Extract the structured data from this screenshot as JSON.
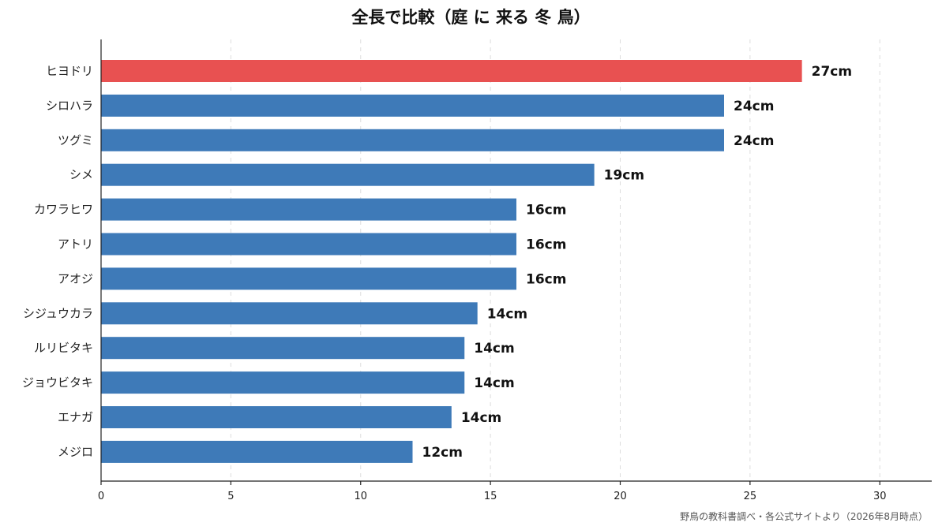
{
  "chart_data": {
    "type": "bar",
    "orientation": "horizontal",
    "title": "全長で比較（庭 に 来る 冬 鳥）",
    "categories": [
      "ヒヨドリ",
      "シロハラ",
      "ツグミ",
      "シメ",
      "カワラヒワ",
      "アトリ",
      "アオジ",
      "シジュウカラ",
      "ルリビタキ",
      "ジョウビタキ",
      "エナガ",
      "メジロ"
    ],
    "values": [
      27,
      24,
      24,
      19,
      16,
      16,
      16,
      14.5,
      14,
      14,
      13.5,
      12
    ],
    "value_labels": [
      "27cm",
      "24cm",
      "24cm",
      "19cm",
      "16cm",
      "16cm",
      "16cm",
      "14cm",
      "14cm",
      "14cm",
      "14cm",
      "12cm"
    ],
    "highlight_index": 0,
    "colors": {
      "default": "#3e7ab8",
      "highlight": "#e85151"
    },
    "xlim": [
      0,
      32
    ],
    "xticks": [
      0,
      5,
      10,
      15,
      20,
      25,
      30
    ],
    "grid": "x-dashed",
    "xlabel": "",
    "ylabel": "",
    "source": "野鳥の教科書調べ・各公式サイトより（2026年8月時点）"
  }
}
